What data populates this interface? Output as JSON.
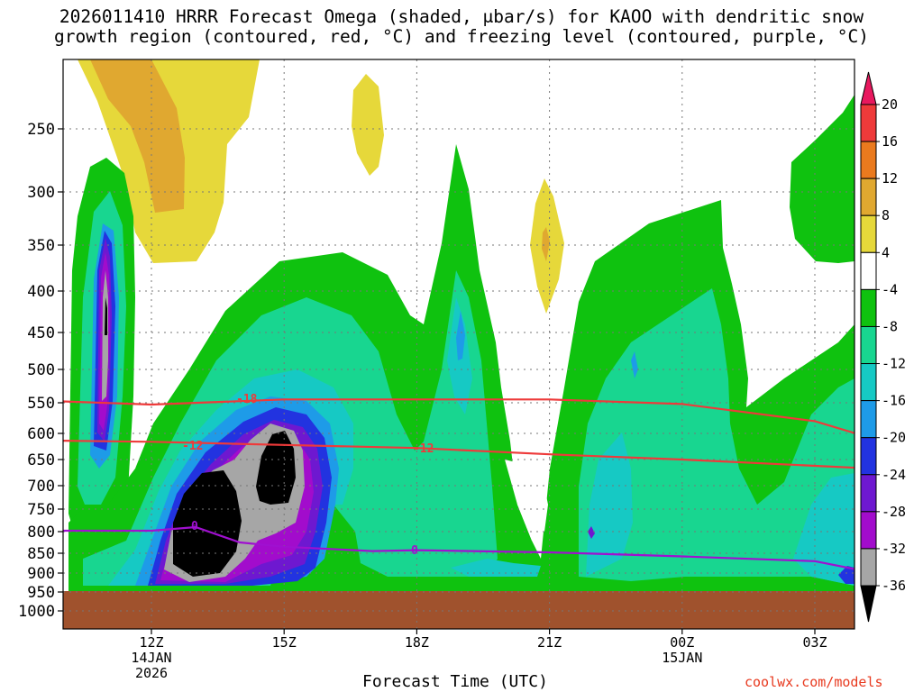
{
  "title_line1": "2026011410 HRRR Forecast Omega (shaded, μbar/s) for KAOO with dendritic snow",
  "title_line2": "growth region (contoured, red, °C) and freezing level (contoured, purple, °C)",
  "credit": "coolwx.com/models",
  "chart_data": {
    "type": "contour",
    "title": "2026011410 HRRR Forecast Omega (shaded, μbar/s) for KAOO with dendritic snow growth region (contoured, red, °C) and freezing level (contoured, purple, °C)",
    "xlabel": "Forecast Time (UTC)",
    "ylabel": "",
    "x_range": [
      "10Z 14JAN 2026",
      "04Z 15JAN"
    ],
    "y_range_mb": [
      1000,
      200
    ],
    "y_ticks": [
      "250",
      "300",
      "350",
      "400",
      "450",
      "500",
      "550",
      "600",
      "650",
      "700",
      "750",
      "800",
      "850",
      "900",
      "950",
      "1000"
    ],
    "x_ticks": [
      {
        "label": "12Z",
        "sub1": "14JAN",
        "sub2": "2026"
      },
      {
        "label": "15Z",
        "sub1": "",
        "sub2": ""
      },
      {
        "label": "18Z",
        "sub1": "",
        "sub2": ""
      },
      {
        "label": "21Z",
        "sub1": "",
        "sub2": ""
      },
      {
        "label": "00Z",
        "sub1": "15JAN",
        "sub2": ""
      },
      {
        "label": "03Z",
        "sub1": "",
        "sub2": ""
      }
    ],
    "colorbar": {
      "labels": [
        "20",
        "16",
        "12",
        "8",
        "4",
        "-4",
        "-8",
        "-12",
        "-16",
        "-20",
        "-24",
        "-28",
        "-32",
        "-36"
      ],
      "colors": [
        "#e8185e",
        "#ee3a3a",
        "#ea7a1e",
        "#e0a830",
        "#e6d83a",
        "#ffffff",
        "#0fc20f",
        "#18d690",
        "#16c9c4",
        "#1e9be8",
        "#2233e0",
        "#6e18d0",
        "#a20ccc",
        "#a6a6a6",
        "#000000"
      ]
    },
    "contour_labels": [
      {
        "value": "-18",
        "series": "dendritic_snow"
      },
      {
        "value": "-12",
        "series": "dendritic_snow"
      },
      {
        "value": "-12",
        "series": "dendritic_snow"
      },
      {
        "value": "0",
        "series": "freezing_level"
      },
      {
        "value": "0",
        "series": "freezing_level"
      }
    ],
    "series": [
      {
        "name": "-18 °C isotherm",
        "color": "#ee3a3a",
        "time_hours": [
          10,
          12,
          15,
          18,
          21,
          24,
          27,
          28
        ],
        "pressure_mb": [
          548,
          553,
          545,
          545,
          545,
          552,
          580,
          602
        ]
      },
      {
        "name": "-12 °C isotherm",
        "color": "#ee3a3a",
        "time_hours": [
          10,
          12,
          15,
          18,
          21,
          24,
          27,
          28
        ],
        "pressure_mb": [
          614,
          616,
          622,
          628,
          640,
          650,
          662,
          666
        ]
      },
      {
        "name": "0 °C freezing level",
        "color": "#a010d0",
        "time_hours": [
          10,
          12,
          13,
          14,
          15,
          17,
          18,
          21,
          24,
          27,
          28
        ],
        "pressure_mb": [
          798,
          798,
          790,
          825,
          835,
          845,
          843,
          848,
          858,
          870,
          892
        ]
      }
    ]
  }
}
